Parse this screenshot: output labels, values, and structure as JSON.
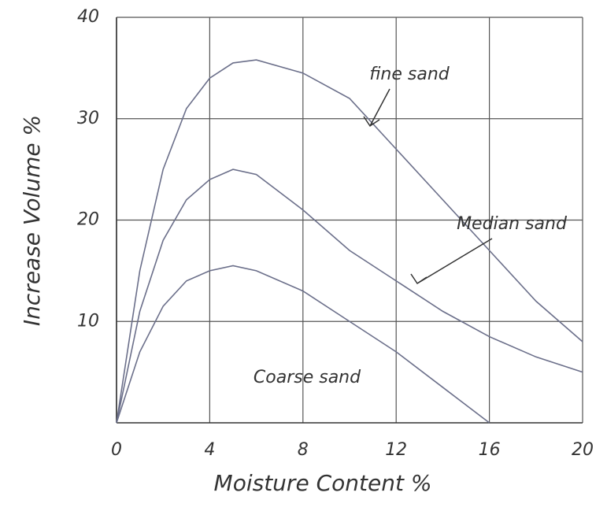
{
  "chart_data": {
    "type": "line",
    "x_label": "Moisture Content %",
    "y_label": "Increase Volume %",
    "x": [
      0,
      1,
      2,
      3,
      4,
      5,
      6,
      8,
      10,
      12,
      14,
      16,
      18,
      20
    ],
    "series": [
      {
        "name": "fine sand",
        "color": "#6b6f8a",
        "values": [
          0,
          15,
          25,
          31,
          34,
          35.5,
          35.8,
          34.5,
          32,
          27,
          22,
          17,
          12,
          8
        ]
      },
      {
        "name": "Median sand",
        "color": "#6b6f8a",
        "values": [
          0,
          11,
          18,
          22,
          24,
          25,
          24.5,
          21,
          17,
          14,
          11,
          8.5,
          6.5,
          5
        ]
      },
      {
        "name": "Coarse sand",
        "color": "#6b6f8a",
        "values": [
          0,
          7,
          11.5,
          14,
          15,
          15.5,
          15,
          13,
          10,
          7,
          3.5,
          0,
          null,
          null
        ]
      }
    ],
    "xlim": [
      0,
      20
    ],
    "ylim": [
      0,
      40
    ],
    "xticks": [
      0,
      4,
      8,
      12,
      16,
      20
    ],
    "yticks": [
      10,
      20,
      30,
      40
    ],
    "grid": true
  }
}
